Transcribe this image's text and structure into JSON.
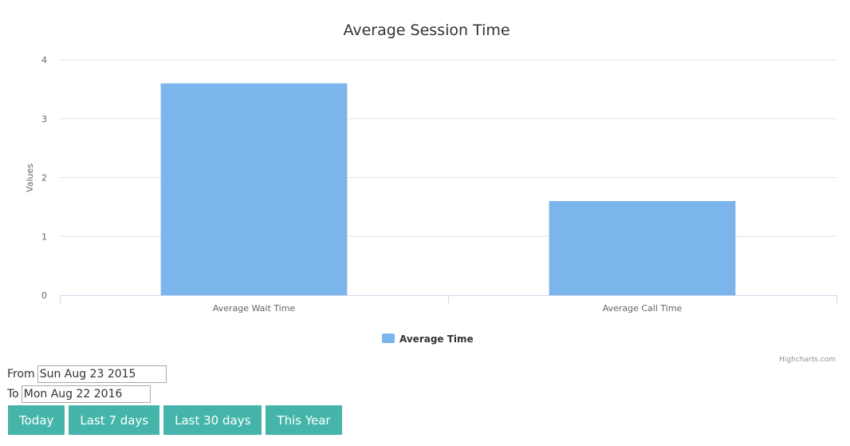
{
  "chart_data": {
    "type": "bar",
    "title": "Average Session Time",
    "categories": [
      "Average Wait Time",
      "Average Call Time"
    ],
    "series": [
      {
        "name": "Average Time",
        "values": [
          3.6,
          1.6
        ],
        "color": "#7cb5ec"
      }
    ],
    "xlabel": "",
    "ylabel": "Values",
    "ylim": [
      0,
      4
    ],
    "yticks": [
      "0",
      "1",
      "2",
      "3",
      "4"
    ],
    "grid": true,
    "legend": "bottom-center",
    "credits": "Highcharts.com"
  },
  "filters": {
    "from_label": "From",
    "from_value": "Sun Aug 23 2015",
    "to_label": "To",
    "to_value": "Mon Aug 22 2016"
  },
  "range_buttons": {
    "today": "Today",
    "last_7_days": "Last 7 days",
    "last_30_days": "Last 30 days",
    "this_year": "This Year"
  },
  "colors": {
    "button_bg": "#45b5aa",
    "bar": "#7cb5ec",
    "grid": "#e6e6e6"
  }
}
